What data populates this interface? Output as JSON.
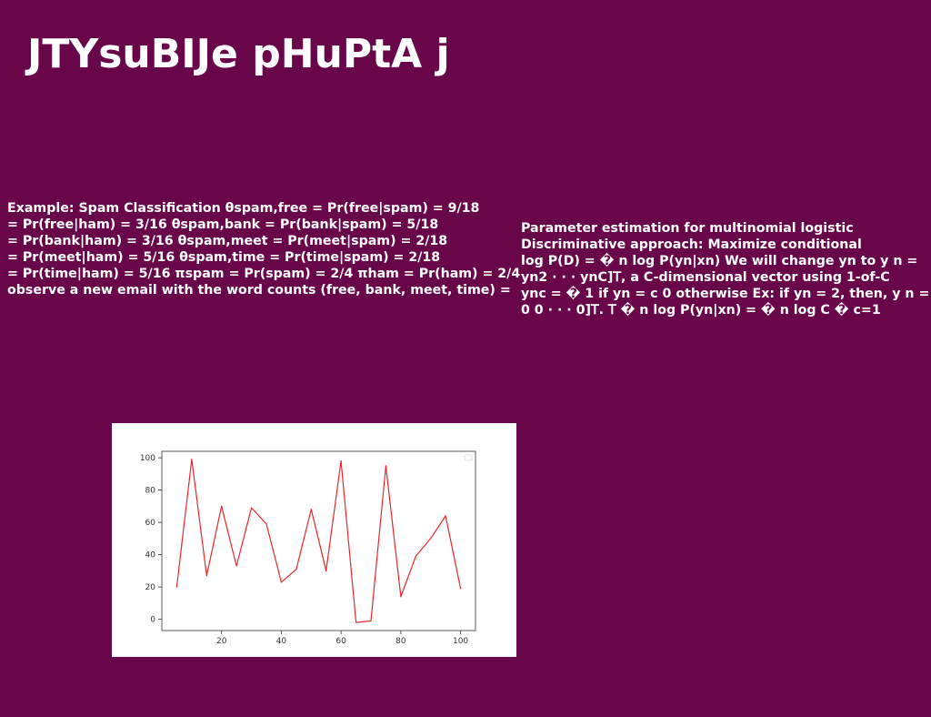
{
  "slide": {
    "title": "JTYsuBIJe pHuPtA j"
  },
  "left_text": {
    "lines": [
      "Example: Spam Classification θspam,free = Pr(free|spam) = 9/18",
      "= Pr(free|ham) = 3/16 θspam,bank = Pr(bank|spam) = 5/18",
      "= Pr(bank|ham) = 3/16 θspam,meet = Pr(meet|spam) = 2/18",
      "= Pr(meet|ham) = 5/16 θspam,time = Pr(time|spam) = 2/18",
      "= Pr(time|ham) = 5/16 πspam = Pr(spam) = 2/4 πham = Pr(ham) = 2/4",
      "observe a new email with the word counts (free, bank, meet, time) ="
    ]
  },
  "right_text": {
    "lines": [
      "Parameter estimation for multinomial logistic",
      "Discriminative approach: Maximize conditional",
      "log P(D) = � n log P(yn|xn) We will change yn to y n =",
      "yn2 · · · ynC]𝖳, a C-dimensional vector using 1-of-C",
      "ync = � 1 if yn = c 0 otherwise Ex: if yn = 2, then, y n = [0",
      "0 0 · · · 0]𝖳. 𝖳 � n log P(yn|xn) = � n log C � c=1"
    ]
  },
  "chart_data": {
    "type": "line",
    "x": [
      5,
      10,
      15,
      20,
      25,
      30,
      35,
      40,
      45,
      50,
      55,
      60,
      65,
      70,
      75,
      80,
      85,
      90,
      95,
      100
    ],
    "series": [
      {
        "values": [
          20,
          99,
          27,
          70,
          33,
          69,
          59,
          23,
          31,
          68,
          30,
          98,
          -2,
          -1,
          95,
          14,
          39,
          50,
          64,
          19
        ],
        "color": "#e8262a"
      }
    ],
    "xlim": [
      0,
      105
    ],
    "ylim": [
      -7,
      104
    ],
    "xticks": [
      20,
      40,
      60,
      80,
      100
    ],
    "yticks": [
      0,
      20,
      40,
      60,
      80,
      100
    ],
    "legend": "top-right",
    "grid": false
  }
}
